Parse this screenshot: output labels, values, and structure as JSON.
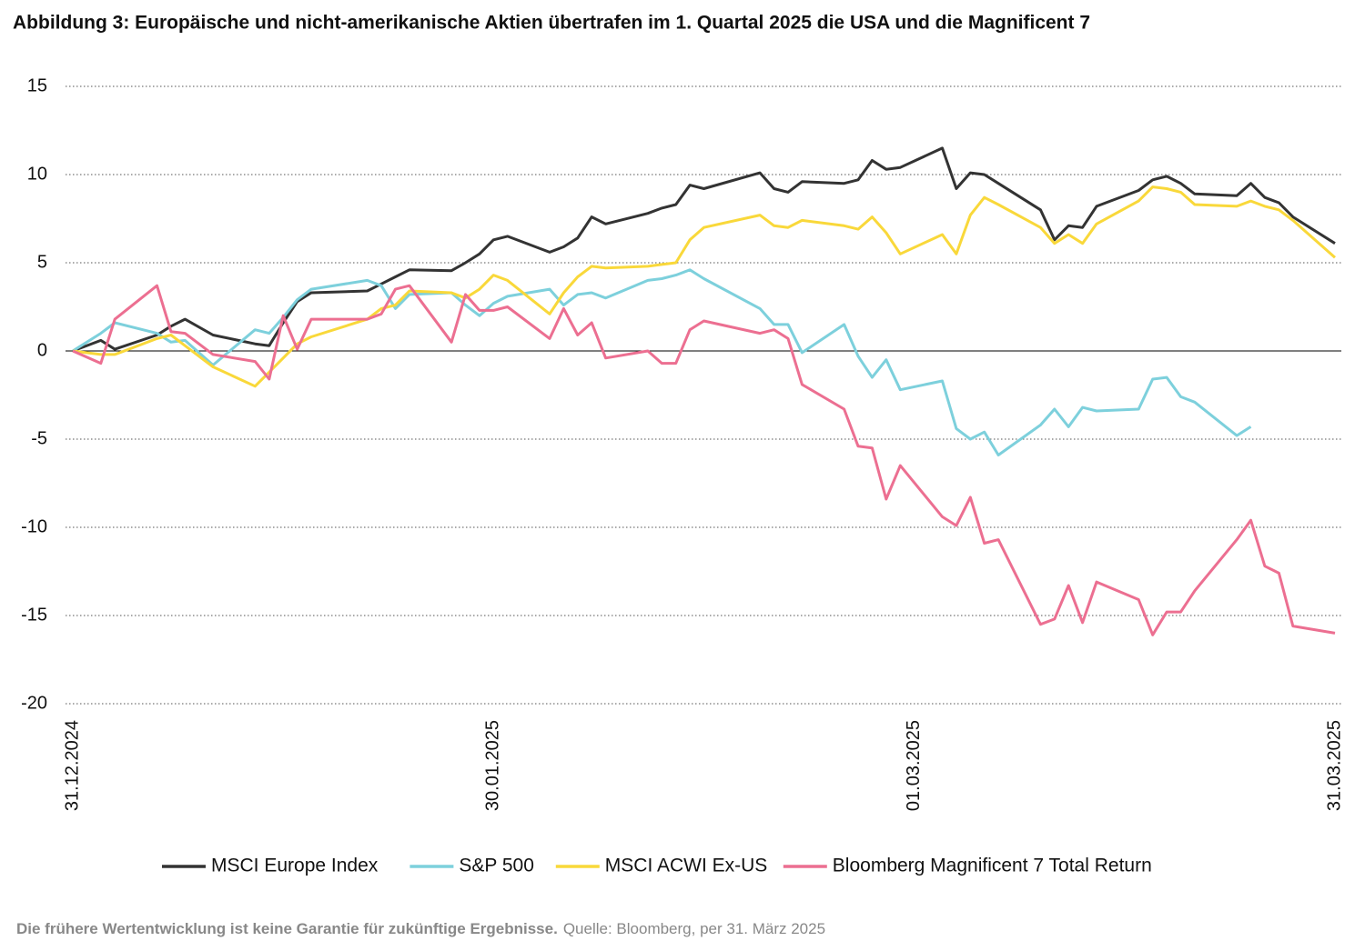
{
  "chart_data": {
    "type": "line",
    "title": "Abbildung 3: Europäische und nicht-amerikanische Aktien übertrafen im 1. Quartal 2025 die USA und die Magnificent 7",
    "x": [
      "2024-12-31",
      "2025-01-02",
      "2025-01-03",
      "2025-01-06",
      "2025-01-07",
      "2025-01-08",
      "2025-01-10",
      "2025-01-13",
      "2025-01-14",
      "2025-01-15",
      "2025-01-16",
      "2025-01-17",
      "2025-01-21",
      "2025-01-22",
      "2025-01-23",
      "2025-01-24",
      "2025-01-27",
      "2025-01-28",
      "2025-01-29",
      "2025-01-30",
      "2025-01-31",
      "2025-02-03",
      "2025-02-04",
      "2025-02-05",
      "2025-02-06",
      "2025-02-07",
      "2025-02-10",
      "2025-02-11",
      "2025-02-12",
      "2025-02-13",
      "2025-02-14",
      "2025-02-18",
      "2025-02-19",
      "2025-02-20",
      "2025-02-21",
      "2025-02-24",
      "2025-02-25",
      "2025-02-26",
      "2025-02-27",
      "2025-02-28",
      "2025-03-03",
      "2025-03-04",
      "2025-03-05",
      "2025-03-06",
      "2025-03-07",
      "2025-03-10",
      "2025-03-11",
      "2025-03-12",
      "2025-03-13",
      "2025-03-14",
      "2025-03-17",
      "2025-03-18",
      "2025-03-19",
      "2025-03-20",
      "2025-03-21",
      "2025-03-24",
      "2025-03-25",
      "2025-03-26",
      "2025-03-27",
      "2025-03-28",
      "2025-03-31"
    ],
    "series": [
      {
        "name": "MSCI Europe Index",
        "color": "#333333",
        "values": [
          0,
          0.6,
          0.1,
          0.9,
          1.4,
          1.8,
          0.9,
          0.4,
          0.3,
          1.6,
          2.8,
          3.3,
          3.4,
          3.8,
          4.2,
          4.6,
          4.55,
          5.0,
          5.5,
          6.3,
          6.5,
          5.6,
          5.9,
          6.4,
          7.6,
          7.2,
          7.8,
          8.1,
          8.3,
          9.4,
          9.2,
          10.1,
          9.2,
          9.0,
          9.6,
          9.5,
          9.7,
          10.8,
          10.3,
          10.4,
          11.5,
          9.2,
          10.1,
          10.0,
          9.5,
          8.0,
          6.3,
          7.1,
          7.0,
          8.2,
          9.1,
          9.7,
          9.9,
          9.5,
          8.9,
          8.8,
          9.5,
          8.7,
          8.4,
          7.6,
          6.1
        ]
      },
      {
        "name": "S&P 500",
        "color": "#7dd0dc",
        "values": [
          0,
          1.0,
          1.6,
          1.0,
          0.5,
          0.6,
          -0.8,
          1.2,
          1.0,
          1.9,
          2.9,
          3.5,
          4.0,
          3.7,
          2.4,
          3.2,
          3.3,
          2.6,
          2.0,
          2.7,
          3.1,
          3.5,
          2.6,
          3.2,
          3.3,
          3.0,
          4.0,
          4.1,
          4.3,
          4.6,
          4.1,
          2.4,
          1.5,
          1.5,
          -0.1,
          1.5,
          -0.3,
          -1.5,
          -0.5,
          -2.2,
          -1.7,
          -4.4,
          -5.0,
          -4.6,
          -5.9,
          -4.2,
          -3.3,
          -4.3,
          -3.2,
          -3.4,
          -3.3,
          -1.6,
          -1.5,
          -2.6,
          -2.9,
          -4.8,
          -4.3,
          null,
          null,
          null,
          null
        ]
      },
      {
        "name": "MSCI ACWI Ex-US",
        "color": "#f9d83a",
        "values": [
          0,
          -0.2,
          -0.2,
          0.7,
          0.9,
          0.3,
          -0.9,
          -2.0,
          -1.2,
          -0.4,
          0.4,
          0.8,
          1.8,
          2.4,
          2.6,
          3.4,
          3.3,
          3.0,
          3.5,
          4.3,
          4.0,
          2.1,
          3.3,
          4.2,
          4.8,
          4.7,
          4.8,
          4.9,
          5.0,
          6.3,
          7.0,
          7.7,
          7.1,
          7.0,
          7.4,
          7.1,
          6.9,
          7.6,
          6.7,
          5.5,
          6.6,
          5.5,
          7.7,
          8.7,
          8.3,
          7.0,
          6.1,
          6.6,
          6.1,
          7.2,
          8.5,
          9.3,
          9.2,
          9.0,
          8.3,
          8.2,
          8.5,
          8.2,
          8.0,
          7.4,
          5.3
        ]
      },
      {
        "name": "Bloomberg Magnificent 7 Total Return",
        "color": "#ec6f91",
        "values": [
          0,
          -0.7,
          1.8,
          3.7,
          1.1,
          1.0,
          -0.2,
          -0.6,
          -1.6,
          2.0,
          0.1,
          1.8,
          1.8,
          2.1,
          3.5,
          3.7,
          0.5,
          3.2,
          2.3,
          2.3,
          2.5,
          0.7,
          2.4,
          0.9,
          1.6,
          -0.4,
          0.0,
          -0.7,
          -0.7,
          1.2,
          1.7,
          1.0,
          1.2,
          0.7,
          -1.9,
          -3.3,
          -5.4,
          -5.5,
          -8.4,
          -6.5,
          -9.4,
          -9.9,
          -8.3,
          -10.9,
          -10.7,
          -15.5,
          -15.2,
          -13.3,
          -15.4,
          -13.1,
          -14.1,
          -16.1,
          -14.8,
          -14.8,
          -13.6,
          -10.7,
          -9.6,
          -12.2,
          -12.6,
          -15.6,
          -16.0
        ]
      }
    ],
    "xlim": [
      "2024-12-31",
      "2025-03-31"
    ],
    "xticks": [
      {
        "value": "2024-12-31",
        "label": "31.12.2024"
      },
      {
        "value": "2025-01-30",
        "label": "30.01.2025"
      },
      {
        "value": "2025-03-01",
        "label": "01.03.2025"
      },
      {
        "value": "2025-03-31",
        "label": "31.03.2025"
      }
    ],
    "ylim": [
      -20,
      15
    ],
    "yticks": [
      15,
      10,
      5,
      0,
      -5,
      -10,
      -15,
      -20
    ],
    "grid": true,
    "legend": "bottom",
    "footnote": "Die frühere Wertentwicklung ist keine Garantie für zukünftige Ergebnisse.",
    "source": "Quelle: Bloomberg, per 31. März 2025"
  }
}
